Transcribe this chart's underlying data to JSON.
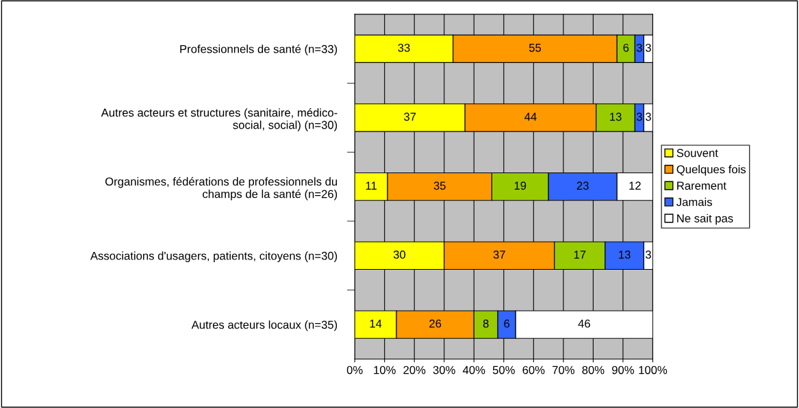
{
  "chart_data": {
    "type": "bar",
    "orientation": "horizontal",
    "stacked": true,
    "data_labels": true,
    "grid": "x",
    "legend": "right",
    "categories": [
      "Professionnels de santé (n=33)",
      "Autres acteurs et structures (sanitaire, médico-\nsocial, social) (n=30)",
      "Organismes, fédérations de professionnels du\nchamps de la santé (n=26)",
      "Associations d'usagers, patients, citoyens (n=30)",
      "Autres acteurs locaux (n=35)"
    ],
    "xlim": [
      0,
      100
    ],
    "xticks": [
      {
        "value": 0,
        "label": "0%"
      },
      {
        "value": 10,
        "label": "10%"
      },
      {
        "value": 20,
        "label": "20%"
      },
      {
        "value": 30,
        "label": "30%"
      },
      {
        "value": 40,
        "label": "40%"
      },
      {
        "value": 50,
        "label": "50%"
      },
      {
        "value": 60,
        "label": "60%"
      },
      {
        "value": 70,
        "label": "70%"
      },
      {
        "value": 80,
        "label": "80%"
      },
      {
        "value": 90,
        "label": "90%"
      },
      {
        "value": 100,
        "label": "100%"
      }
    ],
    "series": [
      {
        "name": "Souvent",
        "color": "#ffff00",
        "values": [
          33,
          37,
          11,
          30,
          14
        ]
      },
      {
        "name": "Quelques fois",
        "color": "#ff9900",
        "values": [
          55,
          44,
          35,
          37,
          26
        ]
      },
      {
        "name": "Rarement",
        "color": "#99cc00",
        "values": [
          6,
          13,
          19,
          17,
          8
        ]
      },
      {
        "name": "Jamais",
        "color": "#3366ff",
        "values": [
          3,
          3,
          23,
          13,
          6
        ]
      },
      {
        "name": "Ne sait pas",
        "color": "#ffffff",
        "values": [
          3,
          3,
          12,
          3,
          46
        ]
      }
    ]
  }
}
